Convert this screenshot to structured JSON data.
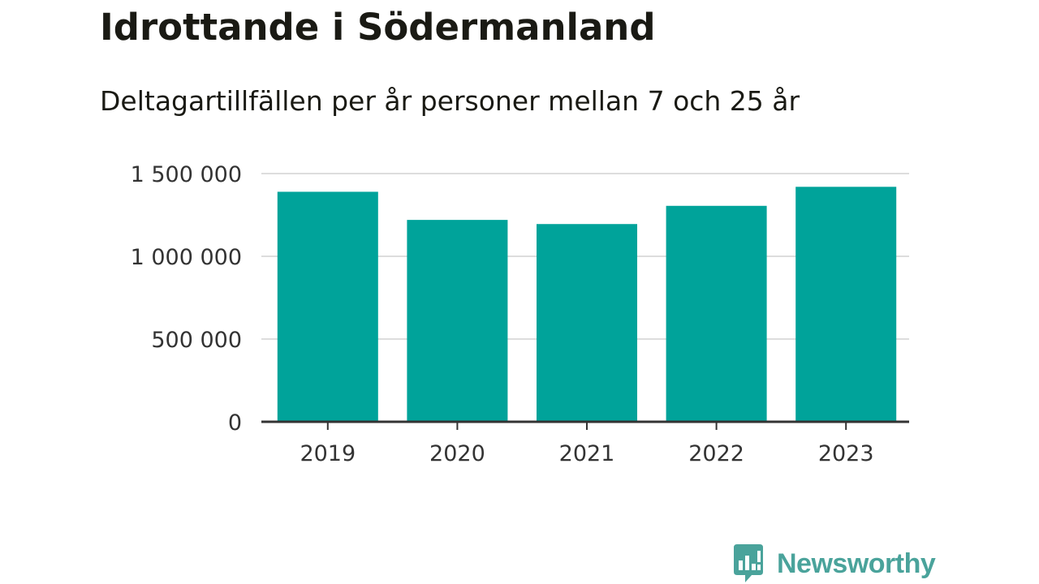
{
  "title": "Idrottande i Södermanland",
  "subtitle": "Deltagartillfällen per år personer mellan 7 och 25 år",
  "brand": {
    "name": "Newsworthy",
    "icon": "newsworthy-logo-icon",
    "color": "#4aa39b"
  },
  "colors": {
    "bar": "#00a39a",
    "grid": "#dddddd",
    "axis": "#333333"
  },
  "chart_data": {
    "type": "bar",
    "title": "Idrottande i Södermanland",
    "subtitle": "Deltagartillfällen per år personer mellan 7 och 25 år",
    "categories": [
      "2019",
      "2020",
      "2021",
      "2022",
      "2023"
    ],
    "values": [
      1390000,
      1220000,
      1195000,
      1305000,
      1420000
    ],
    "ylim": [
      0,
      1500000
    ],
    "yticks": [
      0,
      500000,
      1000000,
      1500000
    ],
    "ytick_labels": [
      "0",
      "500 000",
      "1 000 000",
      "1 500 000"
    ],
    "xlabel": "",
    "ylabel": "",
    "grid": true
  }
}
